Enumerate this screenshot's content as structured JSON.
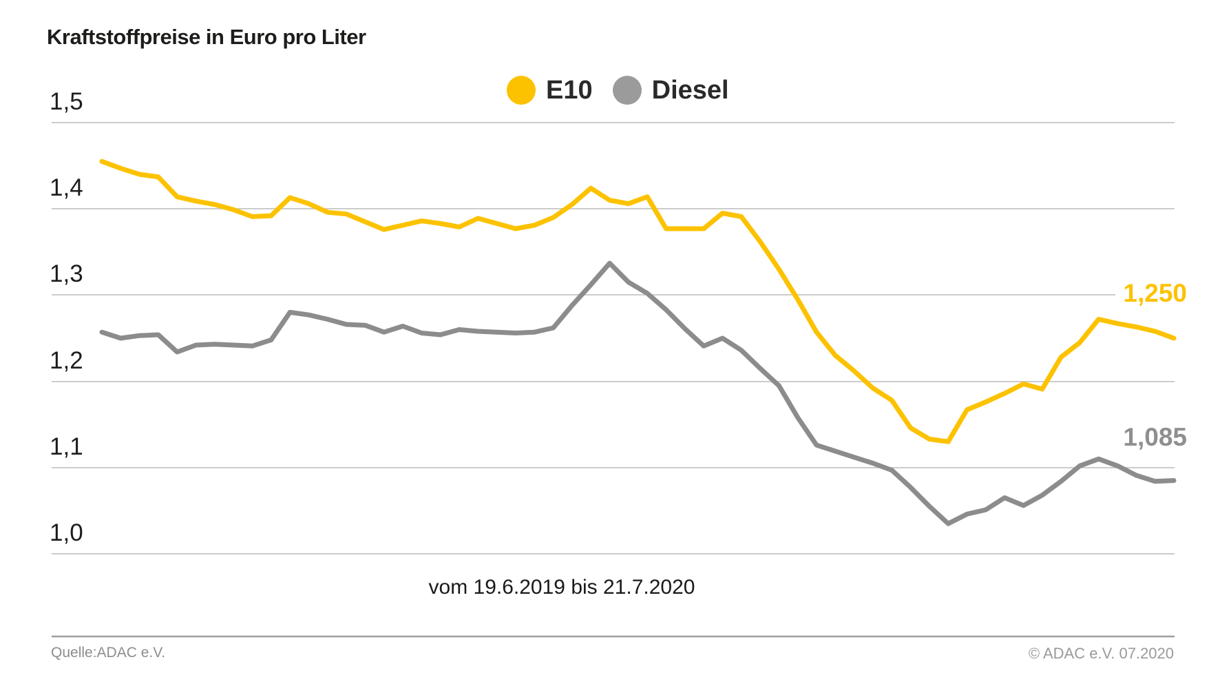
{
  "title": "Kraftstoffpreise in Euro pro Liter",
  "legend": [
    {
      "label": "E10",
      "color": "#fcc200"
    },
    {
      "label": "Diesel",
      "color": "#9b9b9b"
    }
  ],
  "y_tick_labels": [
    "1,5",
    "1,4",
    "1,3",
    "1,2",
    "1,1",
    "1,0"
  ],
  "end_labels": {
    "e10": {
      "text": "1,250",
      "color": "#fcc200"
    },
    "diesel": {
      "text": "1,085",
      "color": "#8f8f8f"
    }
  },
  "period_label": "vom 19.6.2019 bis 21.7.2020",
  "footer": {
    "source": "Quelle:ADAC e.V.",
    "copyright": "© ADAC e.V. 07.2020"
  },
  "chart_data": {
    "type": "line",
    "title": "Kraftstoffpreise in Euro pro Liter",
    "xlabel": "vom 19.6.2019 bis 21.7.2020",
    "ylabel": "Euro pro Liter",
    "ylim": [
      1.0,
      1.5
    ],
    "y_ticks": [
      1.5,
      1.4,
      1.3,
      1.2,
      1.1,
      1.0
    ],
    "x_start": "19.6.2019",
    "x_end": "21.7.2020",
    "x_interval": "weekly",
    "grid": true,
    "legend_position": "top-center",
    "series": [
      {
        "name": "E10",
        "color": "#fcc200",
        "end_label": "1,250",
        "last_value": 1.25,
        "values": [
          1.455,
          1.447,
          1.44,
          1.437,
          1.414,
          1.409,
          1.405,
          1.399,
          1.391,
          1.392,
          1.413,
          1.406,
          1.396,
          1.394,
          1.385,
          1.376,
          1.381,
          1.386,
          1.383,
          1.379,
          1.389,
          1.383,
          1.377,
          1.381,
          1.39,
          1.405,
          1.424,
          1.41,
          1.406,
          1.414,
          1.377,
          1.377,
          1.377,
          1.395,
          1.391,
          1.362,
          1.33,
          1.295,
          1.257,
          1.23,
          1.212,
          1.192,
          1.178,
          1.146,
          1.133,
          1.13,
          1.167,
          1.176,
          1.186,
          1.197,
          1.191,
          1.228,
          1.245,
          1.272,
          1.267,
          1.263,
          1.258,
          1.25
        ]
      },
      {
        "name": "Diesel",
        "color": "#8c8c8c",
        "end_label": "1,085",
        "last_value": 1.085,
        "values": [
          1.257,
          1.25,
          1.253,
          1.254,
          1.234,
          1.242,
          1.243,
          1.242,
          1.241,
          1.248,
          1.28,
          1.277,
          1.272,
          1.266,
          1.265,
          1.257,
          1.264,
          1.256,
          1.254,
          1.26,
          1.258,
          1.257,
          1.256,
          1.257,
          1.262,
          1.288,
          1.312,
          1.337,
          1.315,
          1.302,
          1.283,
          1.261,
          1.241,
          1.25,
          1.236,
          1.215,
          1.195,
          1.158,
          1.126,
          1.119,
          1.112,
          1.105,
          1.097,
          1.077,
          1.055,
          1.035,
          1.046,
          1.051,
          1.065,
          1.056,
          1.068,
          1.084,
          1.102,
          1.11,
          1.102,
          1.091,
          1.084,
          1.085
        ]
      }
    ]
  }
}
